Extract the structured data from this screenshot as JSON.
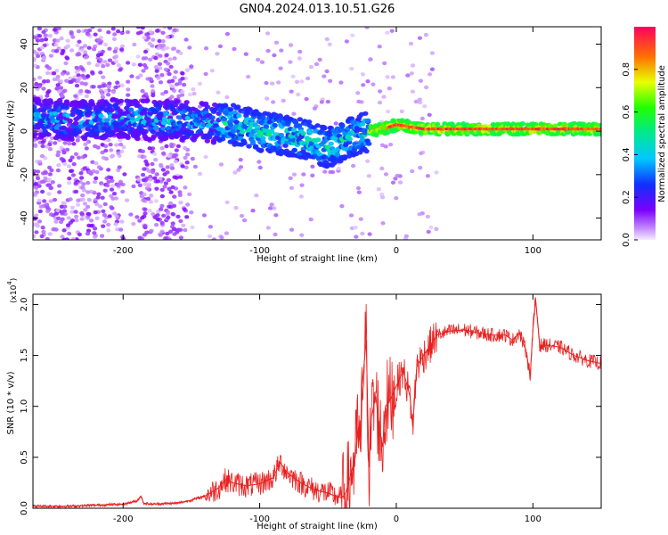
{
  "figure_title": "GN04.2024.013.10.51.G26",
  "chart_data": [
    {
      "type": "heatmap",
      "title": "GN04.2024.013.10.51.G26",
      "xlabel": "Height of straight line (km)",
      "ylabel": "Frequency (Hz)",
      "xlim": [
        -266,
        150
      ],
      "ylim": [
        -50,
        48
      ],
      "xticks": [
        -200,
        -100,
        0,
        100
      ],
      "yticks": [
        -40,
        -20,
        0,
        20,
        40
      ],
      "colorbar": {
        "label": "Normalized spectral amplitude",
        "range": [
          0,
          1
        ],
        "ticks": [
          0.0,
          0.2,
          0.4,
          0.6,
          0.8
        ],
        "colormap": [
          "#f0e0ff",
          "#8a00ff",
          "#2020ff",
          "#00d0ff",
          "#00ff60",
          "#f0ff00",
          "#ff6000",
          "#ff0060"
        ]
      },
      "ridge": {
        "x": [
          -260,
          -240,
          -220,
          -200,
          -180,
          -160,
          -140,
          -120,
          -100,
          -80,
          -60,
          -50,
          -45,
          -40,
          -35,
          -30,
          -20,
          -10,
          0,
          10,
          20,
          40,
          60,
          80,
          100,
          120,
          150
        ],
        "y": [
          6,
          5,
          5,
          6,
          5,
          5,
          4,
          3,
          0,
          -2,
          -5,
          -8,
          -6,
          -5,
          -3,
          -2,
          0,
          1,
          3,
          2,
          1,
          1,
          1,
          1,
          1,
          1,
          1
        ]
      },
      "grid": false
    },
    {
      "type": "line",
      "xlabel": "Height of straight line (km)",
      "ylabel": "SNR (10 * v/v)",
      "y_multiplier_label": "(x10",
      "y_multiplier_exp": "4",
      "xlim": [
        -266,
        150
      ],
      "ylim": [
        0,
        2.1
      ],
      "xticks": [
        -200,
        -100,
        0,
        100
      ],
      "yticks": [
        0.0,
        0.5,
        1.0,
        1.5,
        2.0
      ],
      "line_color": "#e82020",
      "series": [
        {
          "x": [
            -266,
            -240,
            -220,
            -200,
            -190,
            -187,
            -185,
            -180,
            -160,
            -150,
            -140,
            -130,
            -125,
            -120,
            -110,
            -100,
            -90,
            -85,
            -80,
            -75,
            -70,
            -60,
            -50,
            -45,
            -40,
            -37,
            -35,
            -30,
            -28,
            -26,
            -25,
            -22,
            -20,
            -18,
            -15,
            -12,
            -10,
            -8,
            -5,
            0,
            5,
            10,
            12,
            15,
            20,
            25,
            30,
            40,
            50,
            60,
            70,
            80,
            85,
            90,
            95,
            98,
            100,
            102,
            105,
            110,
            120,
            130,
            140,
            150
          ],
          "y": [
            0.02,
            0.02,
            0.03,
            0.04,
            0.07,
            0.12,
            0.05,
            0.04,
            0.05,
            0.08,
            0.12,
            0.2,
            0.28,
            0.25,
            0.22,
            0.24,
            0.3,
            0.45,
            0.35,
            0.3,
            0.25,
            0.18,
            0.15,
            0.12,
            0.1,
            0.15,
            0.25,
            0.5,
            0.8,
            0.55,
            1.2,
            1.65,
            0.4,
            0.9,
            1.1,
            0.75,
            0.6,
            1.0,
            1.05,
            1.2,
            1.35,
            1.1,
            0.8,
            1.4,
            1.5,
            1.6,
            1.7,
            1.74,
            1.75,
            1.72,
            1.7,
            1.7,
            1.65,
            1.72,
            1.55,
            1.3,
            1.75,
            2.05,
            1.6,
            1.6,
            1.58,
            1.5,
            1.45,
            1.42
          ]
        }
      ],
      "grid": false
    }
  ]
}
